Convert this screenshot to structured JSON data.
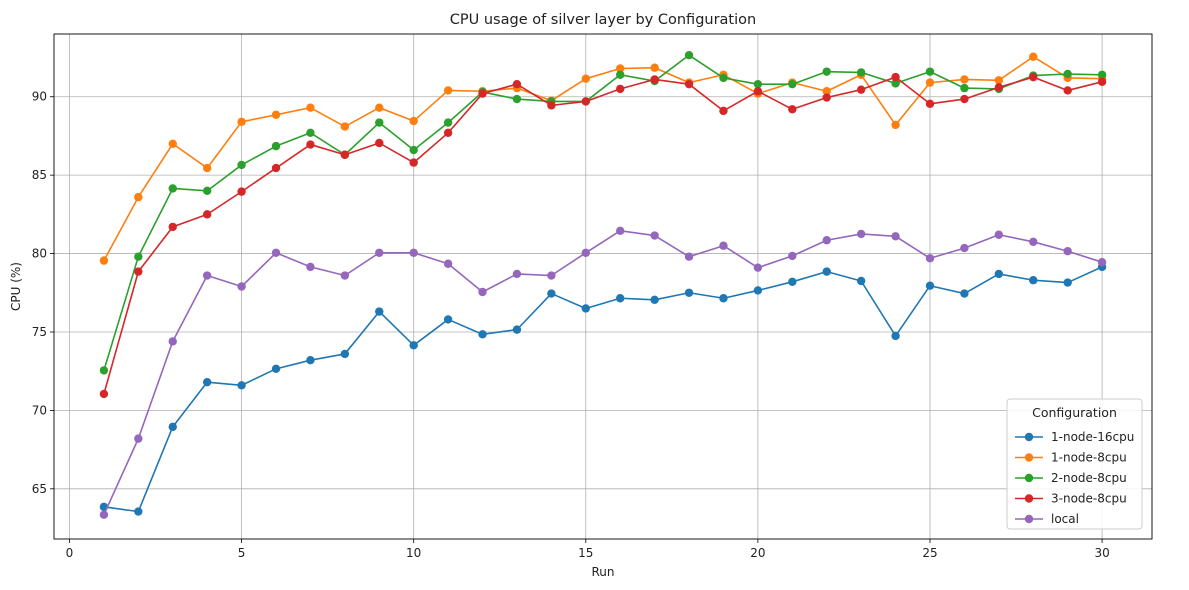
{
  "chart_data": {
    "type": "line",
    "title": "CPU usage of silver layer by Configuration",
    "xlabel": "Run",
    "ylabel": "CPU (%)",
    "xlim": [
      -0.45,
      31.45
    ],
    "ylim": [
      61.8,
      94.0
    ],
    "xticks": [
      0,
      5,
      10,
      15,
      20,
      25,
      30
    ],
    "yticks": [
      65,
      70,
      75,
      80,
      85,
      90
    ],
    "grid": true,
    "legend_title": "Configuration",
    "legend_position": "lower-right",
    "x": [
      1,
      2,
      3,
      4,
      5,
      6,
      7,
      8,
      9,
      10,
      11,
      12,
      13,
      14,
      15,
      16,
      17,
      18,
      19,
      20,
      21,
      22,
      23,
      24,
      25,
      26,
      27,
      28,
      29,
      30
    ],
    "series": [
      {
        "name": "1-node-16cpu",
        "color": "#1f77b4",
        "values": [
          63.85,
          63.55,
          68.95,
          71.8,
          71.6,
          72.65,
          73.2,
          73.6,
          76.3,
          74.15,
          75.8,
          74.85,
          75.15,
          77.45,
          76.5,
          77.15,
          77.05,
          77.5,
          77.15,
          77.65,
          78.2,
          78.85,
          78.25,
          74.75,
          77.95,
          77.45,
          78.7,
          78.3,
          78.15,
          79.15
        ]
      },
      {
        "name": "1-node-8cpu",
        "color": "#ff7f0e",
        "values": [
          79.55,
          83.6,
          87.0,
          85.45,
          88.4,
          88.85,
          89.3,
          88.1,
          89.3,
          88.45,
          90.4,
          90.35,
          90.55,
          89.75,
          91.15,
          91.8,
          91.85,
          90.9,
          91.4,
          90.2,
          90.9,
          90.35,
          91.4,
          88.2,
          90.9,
          91.1,
          91.05,
          92.55,
          91.2,
          91.15
        ]
      },
      {
        "name": "2-node-8cpu",
        "color": "#2ca02c",
        "values": [
          72.55,
          79.8,
          84.15,
          84.0,
          85.65,
          86.85,
          87.7,
          86.3,
          88.35,
          86.6,
          88.35,
          90.3,
          89.85,
          89.7,
          89.7,
          91.4,
          91.0,
          92.65,
          91.2,
          90.8,
          90.8,
          91.6,
          91.55,
          90.85,
          91.6,
          90.55,
          90.5,
          91.35,
          91.45,
          91.4
        ]
      },
      {
        "name": "3-node-8cpu",
        "color": "#d62728",
        "values": [
          71.05,
          78.85,
          81.7,
          82.5,
          83.95,
          85.45,
          86.95,
          86.3,
          87.05,
          85.8,
          87.7,
          90.2,
          90.8,
          89.45,
          89.7,
          90.5,
          91.1,
          90.8,
          89.1,
          90.35,
          89.2,
          89.95,
          90.45,
          91.25,
          89.55,
          89.85,
          90.6,
          91.25,
          90.4,
          90.95
        ]
      },
      {
        "name": "local",
        "color": "#9467bd",
        "values": [
          63.35,
          68.2,
          74.4,
          78.6,
          77.9,
          80.05,
          79.15,
          78.6,
          80.05,
          80.05,
          79.35,
          77.55,
          78.7,
          78.6,
          80.05,
          81.45,
          81.15,
          79.8,
          80.5,
          79.1,
          79.85,
          80.85,
          81.25,
          81.1,
          79.7,
          80.35,
          81.2,
          80.75,
          80.15,
          79.45
        ]
      }
    ]
  }
}
